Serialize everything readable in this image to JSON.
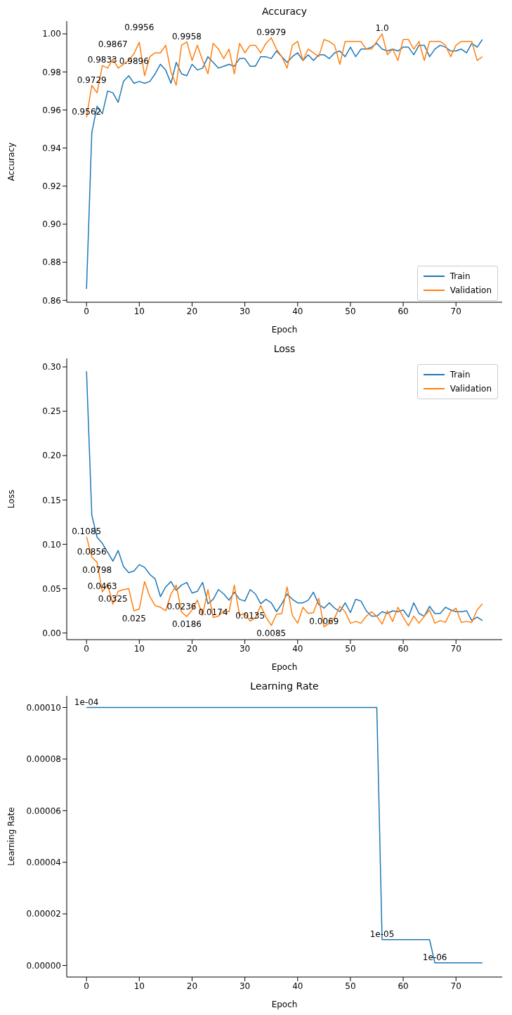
{
  "chart_data": [
    {
      "type": "line",
      "title": "Accuracy",
      "xlabel": "Epoch",
      "ylabel": "Accuracy",
      "x": [
        0,
        1,
        2,
        3,
        4,
        5,
        6,
        7,
        8,
        9,
        10,
        11,
        12,
        13,
        14,
        15,
        16,
        17,
        18,
        19,
        20,
        21,
        22,
        23,
        24,
        25,
        26,
        27,
        28,
        29,
        30,
        31,
        32,
        33,
        34,
        35,
        36,
        37,
        38,
        39,
        40,
        41,
        42,
        43,
        44,
        45,
        46,
        47,
        48,
        49,
        50,
        51,
        52,
        53,
        54,
        55,
        56,
        57,
        58,
        59,
        60,
        61,
        62,
        63,
        64,
        65,
        66,
        67,
        68,
        69,
        70,
        71,
        72,
        73,
        74,
        75
      ],
      "xlim": [
        -3.75,
        78.75
      ],
      "xticks": [
        0,
        10,
        20,
        30,
        40,
        50,
        60,
        70
      ],
      "ylim": [
        0.859,
        1.0067
      ],
      "yticks": [
        {
          "value": 0.86,
          "label": "0.86"
        },
        {
          "value": 0.88,
          "label": "0.88"
        },
        {
          "value": 0.9,
          "label": "0.90"
        },
        {
          "value": 0.92,
          "label": "0.92"
        },
        {
          "value": 0.94,
          "label": "0.94"
        },
        {
          "value": 0.96,
          "label": "0.96"
        },
        {
          "value": 0.98,
          "label": "0.98"
        },
        {
          "value": 1.0,
          "label": "1.00"
        }
      ],
      "legend": "bottom right",
      "series": [
        {
          "name": "Train",
          "color": "#1f77b4",
          "values": [
            0.866,
            0.948,
            0.962,
            0.958,
            0.97,
            0.969,
            0.964,
            0.975,
            0.978,
            0.974,
            0.975,
            0.974,
            0.975,
            0.979,
            0.984,
            0.981,
            0.974,
            0.985,
            0.979,
            0.978,
            0.984,
            0.981,
            0.982,
            0.988,
            0.985,
            0.982,
            0.983,
            0.984,
            0.983,
            0.987,
            0.987,
            0.983,
            0.983,
            0.988,
            0.988,
            0.987,
            0.991,
            0.988,
            0.985,
            0.988,
            0.99,
            0.986,
            0.989,
            0.986,
            0.989,
            0.989,
            0.987,
            0.99,
            0.991,
            0.988,
            0.993,
            0.988,
            0.992,
            0.992,
            0.993,
            0.995,
            0.992,
            0.991,
            0.992,
            0.991,
            0.993,
            0.993,
            0.989,
            0.994,
            0.994,
            0.988,
            0.992,
            0.994,
            0.993,
            0.991,
            0.991,
            0.992,
            0.99,
            0.995,
            0.993,
            0.997
          ]
        },
        {
          "name": "Validation",
          "color": "#ff7f0e",
          "values": [
            0.9562,
            0.9729,
            0.969,
            0.9833,
            0.982,
            0.9867,
            0.982,
            0.984,
            0.986,
            0.9896,
            0.9956,
            0.978,
            0.988,
            0.99,
            0.99,
            0.994,
            0.98,
            0.973,
            0.994,
            0.9958,
            0.986,
            0.994,
            0.986,
            0.979,
            0.995,
            0.992,
            0.987,
            0.992,
            0.979,
            0.995,
            0.99,
            0.994,
            0.994,
            0.99,
            0.995,
            0.9979,
            0.992,
            0.988,
            0.982,
            0.994,
            0.996,
            0.986,
            0.992,
            0.99,
            0.988,
            0.997,
            0.996,
            0.994,
            0.984,
            0.996,
            0.996,
            0.996,
            0.996,
            0.992,
            0.992,
            0.996,
            1.0,
            0.989,
            0.992,
            0.986,
            0.997,
            0.997,
            0.992,
            0.996,
            0.986,
            0.996,
            0.996,
            0.996,
            0.994,
            0.988,
            0.994,
            0.996,
            0.996,
            0.996,
            0.986,
            0.988
          ],
          "value_labels": [
            "0.9562",
            "0.9729",
            null,
            "0.9833",
            null,
            "0.9867",
            null,
            null,
            null,
            "0.9896",
            "0.9956",
            null,
            null,
            null,
            null,
            null,
            null,
            null,
            null,
            "0.9958",
            null,
            null,
            null,
            null,
            null,
            null,
            null,
            null,
            null,
            null,
            null,
            null,
            null,
            null,
            null,
            "0.9979",
            null,
            null,
            null,
            null,
            null,
            null,
            null,
            null,
            null,
            null,
            null,
            null,
            null,
            null,
            null,
            null,
            null,
            null,
            null,
            null,
            "1.0",
            null,
            null,
            null,
            null,
            null,
            null,
            null,
            null,
            null,
            null,
            null,
            null,
            null,
            null,
            null,
            null,
            null,
            null,
            null
          ]
        }
      ]
    },
    {
      "type": "line",
      "title": "Loss",
      "xlabel": "Epoch",
      "ylabel": "Loss",
      "x": [
        0,
        1,
        2,
        3,
        4,
        5,
        6,
        7,
        8,
        9,
        10,
        11,
        12,
        13,
        14,
        15,
        16,
        17,
        18,
        19,
        20,
        21,
        22,
        23,
        24,
        25,
        26,
        27,
        28,
        29,
        30,
        31,
        32,
        33,
        34,
        35,
        36,
        37,
        38,
        39,
        40,
        41,
        42,
        43,
        44,
        45,
        46,
        47,
        48,
        49,
        50,
        51,
        52,
        53,
        54,
        55,
        56,
        57,
        58,
        59,
        60,
        61,
        62,
        63,
        64,
        65,
        66,
        67,
        68,
        69,
        70,
        71,
        72,
        73,
        74,
        75
      ],
      "xlim": [
        -3.75,
        78.75
      ],
      "xticks": [
        0,
        10,
        20,
        30,
        40,
        50,
        60,
        70
      ],
      "ylim": [
        -0.0075,
        0.3095
      ],
      "yticks": [
        {
          "value": 0,
          "label": "0.00"
        },
        {
          "value": 0.05,
          "label": "0.05"
        },
        {
          "value": 0.1,
          "label": "0.10"
        },
        {
          "value": 0.15,
          "label": "0.15"
        },
        {
          "value": 0.2,
          "label": "0.20"
        },
        {
          "value": 0.25,
          "label": "0.25"
        },
        {
          "value": 0.3,
          "label": "0.30"
        }
      ],
      "legend": "top right",
      "series": [
        {
          "name": "Train",
          "color": "#1f77b4",
          "values": [
            0.295,
            0.133,
            0.108,
            0.101,
            0.091,
            0.081,
            0.093,
            0.075,
            0.068,
            0.07,
            0.077,
            0.074,
            0.066,
            0.061,
            0.041,
            0.052,
            0.058,
            0.048,
            0.054,
            0.057,
            0.045,
            0.047,
            0.057,
            0.033,
            0.038,
            0.049,
            0.044,
            0.037,
            0.046,
            0.038,
            0.036,
            0.049,
            0.044,
            0.033,
            0.038,
            0.034,
            0.024,
            0.033,
            0.044,
            0.038,
            0.034,
            0.034,
            0.037,
            0.046,
            0.032,
            0.028,
            0.034,
            0.028,
            0.024,
            0.034,
            0.023,
            0.038,
            0.036,
            0.025,
            0.019,
            0.019,
            0.024,
            0.022,
            0.025,
            0.024,
            0.026,
            0.018,
            0.034,
            0.022,
            0.019,
            0.03,
            0.022,
            0.022,
            0.029,
            0.026,
            0.024,
            0.024,
            0.025,
            0.014,
            0.018,
            0.014
          ]
        },
        {
          "name": "Validation",
          "color": "#ff7f0e",
          "values": [
            0.1085,
            0.0856,
            0.0798,
            0.0463,
            0.055,
            0.0325,
            0.047,
            0.049,
            0.05,
            0.025,
            0.027,
            0.058,
            0.041,
            0.031,
            0.029,
            0.025,
            0.044,
            0.054,
            0.0236,
            0.0186,
            0.026,
            0.037,
            0.02,
            0.049,
            0.0174,
            0.019,
            0.025,
            0.024,
            0.054,
            0.02,
            0.022,
            0.0135,
            0.017,
            0.031,
            0.018,
            0.0085,
            0.021,
            0.022,
            0.052,
            0.02,
            0.011,
            0.029,
            0.022,
            0.023,
            0.039,
            0.0069,
            0.011,
            0.017,
            0.03,
            0.024,
            0.011,
            0.013,
            0.011,
            0.019,
            0.024,
            0.019,
            0.01,
            0.025,
            0.013,
            0.029,
            0.018,
            0.008,
            0.019,
            0.011,
            0.019,
            0.026,
            0.011,
            0.014,
            0.012,
            0.024,
            0.028,
            0.012,
            0.013,
            0.012,
            0.026,
            0.033
          ],
          "value_labels": [
            "0.1085",
            "0.0856",
            "0.0798",
            "0.0463",
            null,
            "0.0325",
            null,
            null,
            null,
            "0.025",
            null,
            null,
            null,
            null,
            null,
            null,
            null,
            null,
            "0.0236",
            "0.0186",
            null,
            null,
            null,
            null,
            "0.0174",
            null,
            null,
            null,
            null,
            null,
            null,
            "0.0135",
            null,
            null,
            null,
            "0.0085",
            null,
            null,
            null,
            null,
            null,
            null,
            null,
            null,
            null,
            "0.0069",
            null,
            null,
            null,
            null,
            null,
            null,
            null,
            null,
            null,
            null,
            null,
            null,
            null,
            null,
            null,
            null,
            null,
            null,
            null,
            null,
            null,
            null,
            null,
            null,
            null,
            null,
            null,
            null,
            null,
            null
          ]
        }
      ]
    },
    {
      "type": "line",
      "title": "Learning Rate",
      "xlabel": "Epoch",
      "ylabel": "Learning Rate",
      "x": [
        0,
        1,
        2,
        3,
        4,
        5,
        6,
        7,
        8,
        9,
        10,
        11,
        12,
        13,
        14,
        15,
        16,
        17,
        18,
        19,
        20,
        21,
        22,
        23,
        24,
        25,
        26,
        27,
        28,
        29,
        30,
        31,
        32,
        33,
        34,
        35,
        36,
        37,
        38,
        39,
        40,
        41,
        42,
        43,
        44,
        45,
        46,
        47,
        48,
        49,
        50,
        51,
        52,
        53,
        54,
        55,
        56,
        57,
        58,
        59,
        60,
        61,
        62,
        63,
        64,
        65,
        66,
        67,
        68,
        69,
        70,
        71,
        72,
        73,
        74,
        75
      ],
      "xlim": [
        -3.75,
        78.75
      ],
      "xticks": [
        0,
        10,
        20,
        30,
        40,
        50,
        60,
        70
      ],
      "ylim": [
        -4.5e-06,
        0.0001045
      ],
      "yticks": [
        {
          "value": 0,
          "label": "0.00000"
        },
        {
          "value": 2e-05,
          "label": "0.00002"
        },
        {
          "value": 4e-05,
          "label": "0.00004"
        },
        {
          "value": 6e-05,
          "label": "0.00006"
        },
        {
          "value": 8e-05,
          "label": "0.00008"
        },
        {
          "value": 0.0001,
          "label": "0.00010"
        }
      ],
      "series": [
        {
          "color": "#1f77b4",
          "values": [
            0.0001,
            0.0001,
            0.0001,
            0.0001,
            0.0001,
            0.0001,
            0.0001,
            0.0001,
            0.0001,
            0.0001,
            0.0001,
            0.0001,
            0.0001,
            0.0001,
            0.0001,
            0.0001,
            0.0001,
            0.0001,
            0.0001,
            0.0001,
            0.0001,
            0.0001,
            0.0001,
            0.0001,
            0.0001,
            0.0001,
            0.0001,
            0.0001,
            0.0001,
            0.0001,
            0.0001,
            0.0001,
            0.0001,
            0.0001,
            0.0001,
            0.0001,
            0.0001,
            0.0001,
            0.0001,
            0.0001,
            0.0001,
            0.0001,
            0.0001,
            0.0001,
            0.0001,
            0.0001,
            0.0001,
            0.0001,
            0.0001,
            0.0001,
            0.0001,
            0.0001,
            0.0001,
            0.0001,
            0.0001,
            0.0001,
            1e-05,
            1e-05,
            1e-05,
            1e-05,
            1e-05,
            1e-05,
            1e-05,
            1e-05,
            1e-05,
            1e-05,
            1e-06,
            1e-06,
            1e-06,
            1e-06,
            1e-06,
            1e-06,
            1e-06,
            1e-06,
            1e-06,
            1e-06
          ],
          "value_labels": [
            "1e-04",
            null,
            null,
            null,
            null,
            null,
            null,
            null,
            null,
            null,
            null,
            null,
            null,
            null,
            null,
            null,
            null,
            null,
            null,
            null,
            null,
            null,
            null,
            null,
            null,
            null,
            null,
            null,
            null,
            null,
            null,
            null,
            null,
            null,
            null,
            null,
            null,
            null,
            null,
            null,
            null,
            null,
            null,
            null,
            null,
            null,
            null,
            null,
            null,
            null,
            null,
            null,
            null,
            null,
            null,
            null,
            "1e-05",
            null,
            null,
            null,
            null,
            null,
            null,
            null,
            null,
            null,
            "1e-06",
            null,
            null,
            null,
            null,
            null,
            null,
            null,
            null,
            null
          ]
        }
      ]
    }
  ]
}
